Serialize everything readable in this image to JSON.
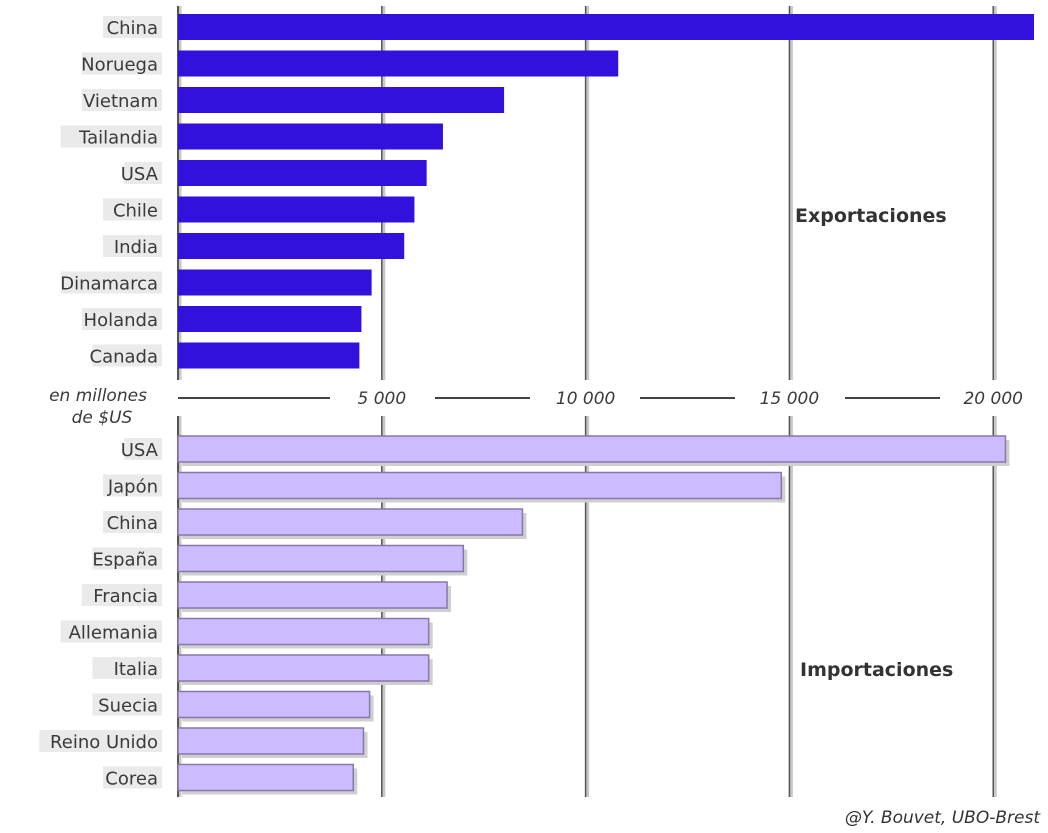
{
  "chart_data": [
    {
      "type": "bar",
      "orientation": "horizontal",
      "section_label": "Exportaciones",
      "categories": [
        "China",
        "Noruega",
        "Vietnam",
        "Tailandia",
        "USA",
        "Chile",
        "India",
        "Dinamarca",
        "Holanda",
        "Canada"
      ],
      "values": [
        21000,
        10800,
        8000,
        6500,
        6100,
        5800,
        5550,
        4750,
        4500,
        4450
      ],
      "xlim": [
        0,
        21000
      ],
      "bar_color": "#3311dd"
    },
    {
      "type": "bar",
      "orientation": "horizontal",
      "section_label": "Importaciones",
      "categories": [
        "USA",
        "Japón",
        "China",
        "España",
        "Francia",
        "Allemania",
        "Italia",
        "Suecia",
        "Reino Unido",
        "Corea"
      ],
      "values": [
        20300,
        14800,
        8450,
        7000,
        6600,
        6150,
        6150,
        4700,
        4550,
        4300
      ],
      "xlim": [
        0,
        21000
      ],
      "bar_color": "#ccbbff",
      "bar_edge_color": "#8877aa"
    }
  ],
  "axis": {
    "unit_label_line1": "en millones",
    "unit_label_line2": "de $US",
    "ticks": [
      5000,
      10000,
      15000,
      20000
    ],
    "tick_labels": [
      "5 000",
      "10 000",
      "15 000",
      "20 000"
    ]
  },
  "credit": "@Y. Bouvet, UBO-Brest"
}
